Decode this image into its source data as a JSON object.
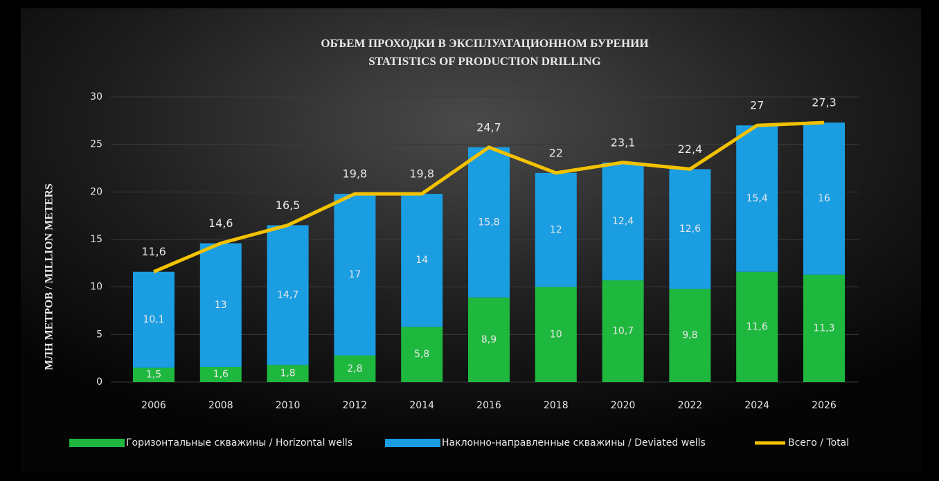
{
  "chart_data": {
    "type": "bar",
    "stacked": true,
    "title": "ОБЪЕМ ПРОХОДКИ В ЭКСПЛУАТАЦИОННОМ БУРЕНИИ",
    "subtitle": "STATISTICS OF PRODUCTION DRILLING",
    "y_label": "МЛН МЕТРОВ / MILLION METERS",
    "categories": [
      "2006",
      "2008",
      "2010",
      "2012",
      "2014",
      "2016",
      "2018",
      "2020",
      "2022",
      "2024",
      "2026"
    ],
    "series": [
      {
        "name": "Горизонтальные скважины / Horizontal wells",
        "color": "#1fb83f",
        "type": "bar",
        "values": [
          1.5,
          1.6,
          1.8,
          2.8,
          5.8,
          8.9,
          10,
          10.7,
          9.8,
          11.6,
          11.3
        ],
        "value_labels": [
          "1,5",
          "1,6",
          "1,8",
          "2,8",
          "5,8",
          "8,9",
          "10",
          "10,7",
          "9,8",
          "11,6",
          "11,3"
        ]
      },
      {
        "name": "Наклонно-направленные скважины / Deviated wells",
        "color": "#1b9de2",
        "type": "bar",
        "values": [
          10.1,
          13,
          14.7,
          17,
          14,
          15.8,
          12,
          12.4,
          12.6,
          15.4,
          16
        ],
        "value_labels": [
          "10,1",
          "13",
          "14,7",
          "17",
          "14",
          "15,8",
          "12",
          "12,4",
          "12,6",
          "15,4",
          "16"
        ]
      },
      {
        "name": "Всего / Total",
        "color": "#f2c200",
        "type": "line",
        "values": [
          11.6,
          14.6,
          16.5,
          19.8,
          19.8,
          24.7,
          22,
          23.1,
          22.4,
          27,
          27.3
        ],
        "value_labels": [
          "11,6",
          "14,6",
          "16,5",
          "19,8",
          "19,8",
          "24,7",
          "22",
          "23,1",
          "22,4",
          "27",
          "27,3"
        ]
      }
    ],
    "ylim": [
      0,
      30
    ],
    "yticks": [
      0,
      5,
      10,
      15,
      20,
      25,
      30
    ],
    "grid": true,
    "legend": "bottom"
  }
}
